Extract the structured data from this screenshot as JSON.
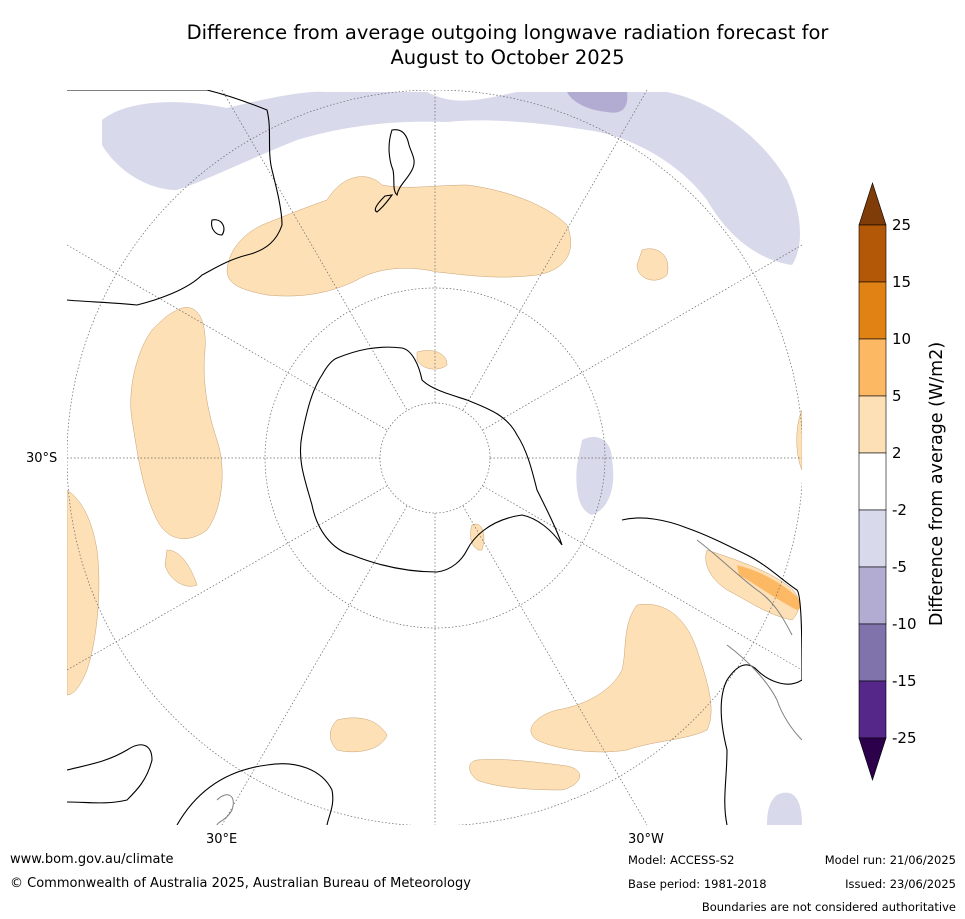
{
  "header": {
    "title_line1": "Difference from average outgoing longwave radiation forecast for",
    "title_line2": "August to October 2025"
  },
  "map": {
    "projection": "south-polar-stereographic",
    "lat_labels": [
      "30°S",
      "30°E",
      "30°W"
    ],
    "colors": {
      "land_outline": "#000000",
      "border_outline": "#808080",
      "graticule": "#666666",
      "positive_2_5": "#fde0b6",
      "negative_2_5": "#d8d9ea"
    }
  },
  "colorbar": {
    "label": "Difference from average (W/m2)",
    "tick_labels": [
      "25",
      "15",
      "10",
      "5",
      "2",
      "-2",
      "-5",
      "-10",
      "-15",
      "-25"
    ],
    "bins": [
      {
        "range": "> 25",
        "color": "#7f3b08"
      },
      {
        "range": "15 to 25",
        "color": "#b35806"
      },
      {
        "range": "10 to 15",
        "color": "#e08214"
      },
      {
        "range": "5 to 10",
        "color": "#fdb863"
      },
      {
        "range": "2 to 5",
        "color": "#fee0b6"
      },
      {
        "range": "-2 to 2",
        "color": "#ffffff"
      },
      {
        "range": "-5 to -2",
        "color": "#d8daeb"
      },
      {
        "range": "-10 to -5",
        "color": "#b2abd2"
      },
      {
        "range": "-15 to -10",
        "color": "#8073ac"
      },
      {
        "range": "-25 to -15",
        "color": "#542788"
      },
      {
        "range": "< -25",
        "color": "#2d004b"
      }
    ]
  },
  "footer": {
    "website": "www.bom.gov.au/climate",
    "copyright": "© Commonwealth of Australia 2025, Australian Bureau of Meteorology",
    "model": "Model: ACCESS-S2",
    "base_period": "Base period: 1981-2018",
    "model_run": "Model run: 21/06/2025",
    "issued": "Issued: 23/06/2025",
    "disclaimer": "Boundaries are not considered authoritative"
  }
}
